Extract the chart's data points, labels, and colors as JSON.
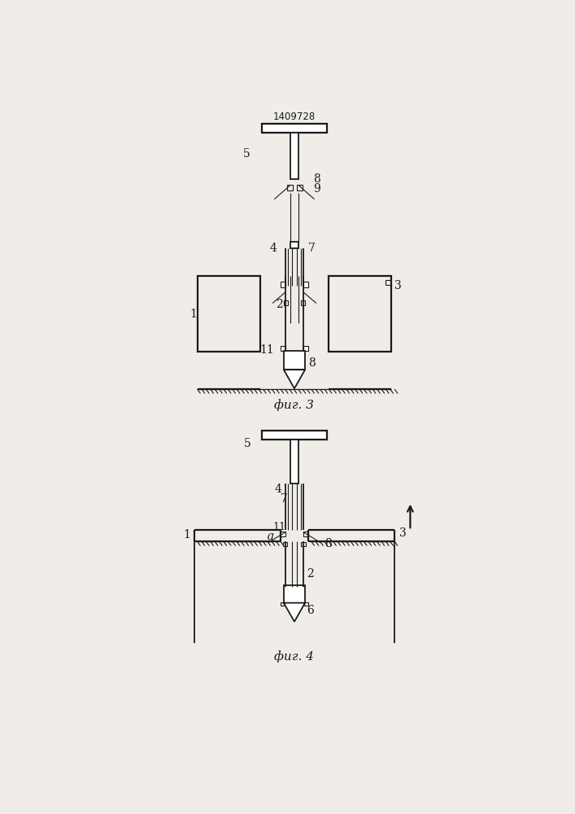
{
  "title": "1409728",
  "fig3_label": "фиг. 3",
  "fig4_label": "фиг. 4",
  "bg_color": "#f0ede8",
  "line_color": "#1a1a1a",
  "lw": 1.3,
  "lw_thin": 0.8,
  "lw_thick": 1.6
}
